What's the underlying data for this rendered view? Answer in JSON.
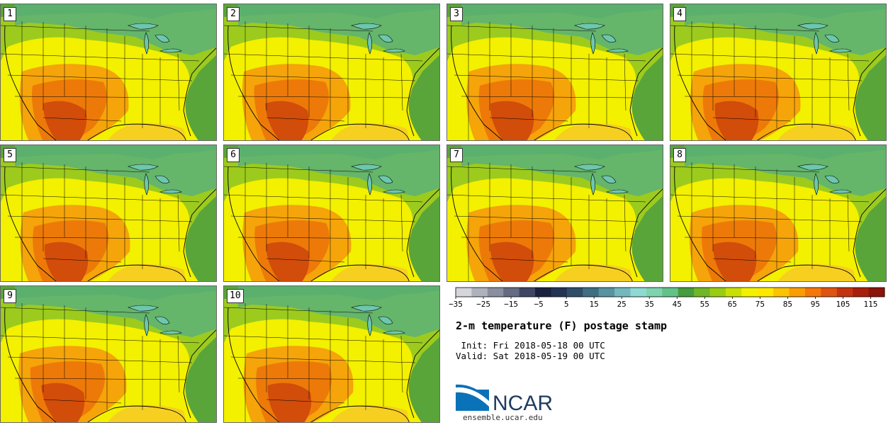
{
  "panels": [
    {
      "label": "1",
      "shift": 0
    },
    {
      "label": "2",
      "shift": -2
    },
    {
      "label": "3",
      "shift": 1
    },
    {
      "label": "4",
      "shift": 3
    },
    {
      "label": "5",
      "shift": 2
    },
    {
      "label": "6",
      "shift": -1
    },
    {
      "label": "7",
      "shift": 1
    },
    {
      "label": "8",
      "shift": 0
    },
    {
      "label": "9",
      "shift": -3
    },
    {
      "label": "10",
      "shift": 2
    }
  ],
  "colorbar": {
    "min": -35,
    "max": 120,
    "step": 5,
    "tick_labels": [
      "−35",
      "−25",
      "−15",
      "−5",
      "5",
      "15",
      "25",
      "35",
      "45",
      "55",
      "65",
      "75",
      "85",
      "95",
      "105",
      "115"
    ],
    "colors": [
      "#d4d6dc",
      "#aeb2bd",
      "#8a8fa0",
      "#656b82",
      "#3f4663",
      "#1a2140",
      "#243253",
      "#304d68",
      "#3f6e82",
      "#5793a0",
      "#73b8bd",
      "#8ed9d2",
      "#7fd3ad",
      "#63c28a",
      "#459d3d",
      "#6fb628",
      "#9bcc14",
      "#c8e105",
      "#f2f200",
      "#ffe800",
      "#fcc300",
      "#fa9d02",
      "#f5760a",
      "#e05210",
      "#c3330f",
      "#a8200c",
      "#8a150a"
    ]
  },
  "title": "2-m temperature (F) postage stamp",
  "init_text": " Init: Fri 2018-05-18 00 UTC",
  "valid_text": "Valid: Sat 2018-05-19 00 UTC",
  "logo": {
    "text": "NCAR",
    "url_text": "ensemble.ucar.edu",
    "color": "#0a72b8"
  },
  "map_colors": {
    "ocean": "#5aa53a",
    "cool": "#5cb178",
    "mild": "#9ccb1e",
    "warm": "#f3f000",
    "hot": "#f5a40a",
    "hotter": "#ed7a08",
    "hottest": "#d24c0a",
    "lake": "#6dc7ae",
    "border": "#000000"
  }
}
